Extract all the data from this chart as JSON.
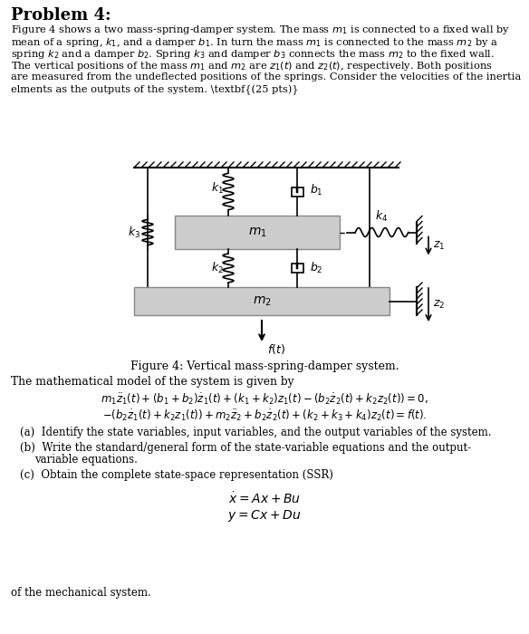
{
  "bg_color": "#ffffff",
  "fig_caption": "Figure 4: Vertical mass-spring-damper system.",
  "title": "Problem 4:",
  "prob_line1": "Figure 4 shows a two mass-spring-damper system. The mass $m_1$ is connected to a fixed wall by",
  "prob_line2": "mean of a spring, $k_1$, and a damper $b_1$. In turn the mass $m_1$ is connected to the mass $m_2$ by a",
  "prob_line3": "spring $k_2$ and a damper $b_2$. Spring $k_3$ and damper $b_3$ connects the mass $m_2$ to the fixed wall.",
  "prob_line4": "The vertical positions of the mass $m_1$ and $m_2$ are $z_1(t)$ and $z_2(t)$, respectively. Both positions",
  "prob_line5": "are measured from the undeflected positions of the springs. Consider the velocities of the inertia",
  "prob_line6": "elments as the outputs of the system. (\\textbf{25 pts})",
  "math_intro": "The mathematical model of the system is given by",
  "eq1": "$m_1\\ddot{z}_1(t) + (b_1 + b_2)\\dot{z}_1(t) + (k_1 + k_2)z_1(t) - (b_2\\dot{z}_2(t) + k_2z_2(t)) = 0,$",
  "eq2": "$-(b_2\\dot{z}_1(t) + k_2z_1(t)) + m_2\\ddot{z}_2 + b_2\\dot{z}_2(t) + (k_2 + k_3 + k_4)z_2(t) = f(t).$",
  "part_a": "(a)  Identify the state variables, input variables, and the output variables of the system.",
  "part_b1": "(b)  Write the standard/general form of the state-variable equations and the output-",
  "part_b2": "        variable equations.",
  "part_c": "(c)  Obtain the complete state-space representation (SSR)",
  "eq_xdot": "$\\dot{x} = Ax + Bu$",
  "eq_y": "$y = Cx + Du$",
  "footer": "of the mechanical system.",
  "ceil_hatch_color": "#333333",
  "mass_color": "#cccccc",
  "mass_edge_color": "#888888",
  "line_color": "#000000"
}
